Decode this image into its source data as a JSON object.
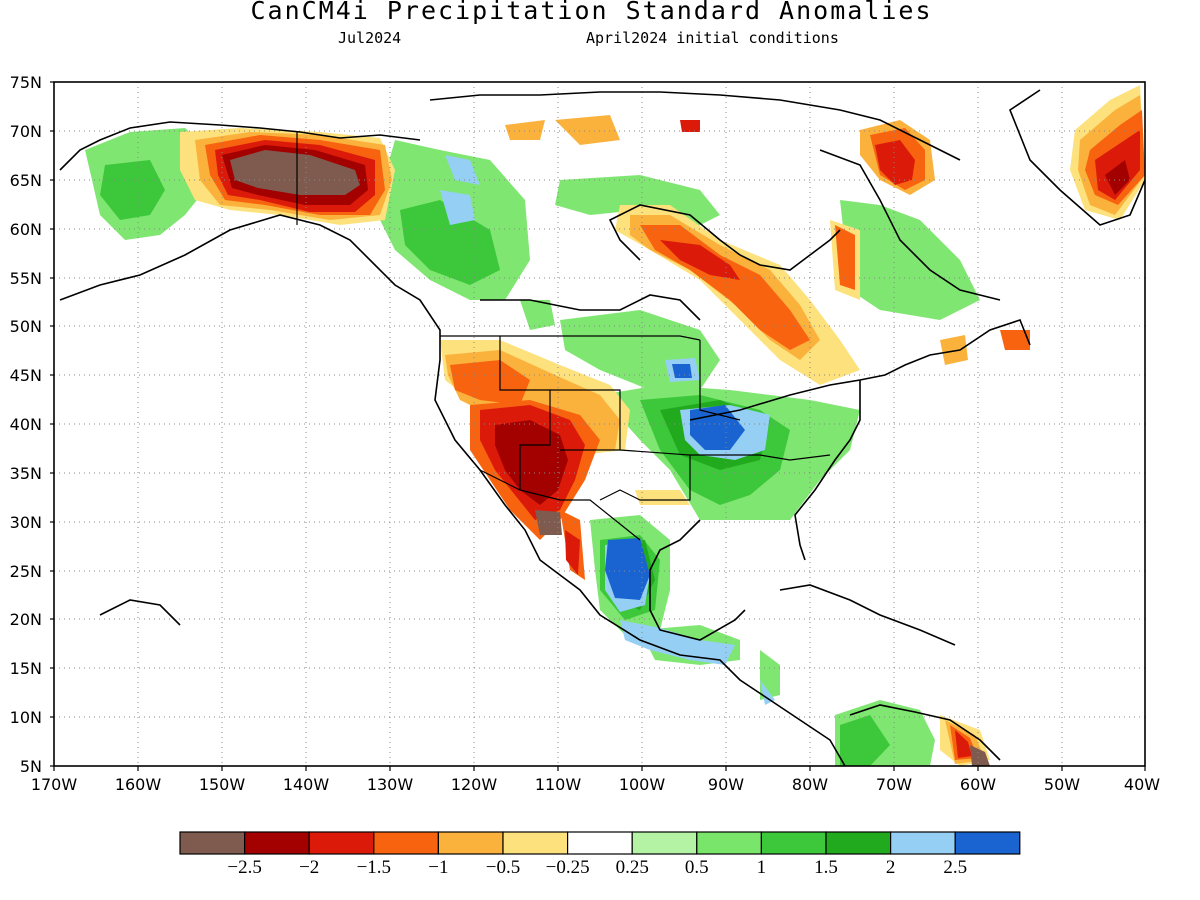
{
  "header": {
    "title": "CanCM4i Precipitation Standard Anomalies",
    "left_subtitle": "Jul2024",
    "right_subtitle": "April2024 initial conditions"
  },
  "map": {
    "lat_labels": [
      "75N",
      "70N",
      "65N",
      "60N",
      "55N",
      "50N",
      "45N",
      "40N",
      "35N",
      "30N",
      "25N",
      "20N",
      "15N",
      "10N",
      "5N"
    ],
    "lon_labels": [
      "170W",
      "160W",
      "150W",
      "140W",
      "130W",
      "120W",
      "110W",
      "100W",
      "90W",
      "80W",
      "70W",
      "60W",
      "50W",
      "40W"
    ],
    "lon_range": [
      -170,
      -40
    ],
    "lat_range": [
      5,
      75
    ],
    "grid": "dotted"
  },
  "colorbar": {
    "colors": [
      "#7f5a4e",
      "#a30000",
      "#db1a0a",
      "#f8630f",
      "#fbb23d",
      "#fde17c",
      "#ffffff",
      "#b4f3a4",
      "#79e56a",
      "#3cc83a",
      "#22aa1f",
      "#95cff4",
      "#1a64d2"
    ],
    "labels": [
      "-2.5",
      "-2",
      "-1.5",
      "-1",
      "-0.5",
      "-0.25",
      "0.25",
      "0.5",
      "1",
      "1.5",
      "2",
      "2.5"
    ]
  },
  "anomaly_regions": [
    {
      "region": "Yukon / eastern Alaska",
      "category": "< -2.5",
      "color": "#7f5a4e"
    },
    {
      "region": "US Southwest / Arizona",
      "category": "-2 to -2.5",
      "color": "#a30000"
    },
    {
      "region": "Central US / Mississippi valley",
      "category": "> 2.5",
      "color": "#1a64d2"
    },
    {
      "region": "Eastern Mexico",
      "category": "> 2.5",
      "color": "#1a64d2"
    },
    {
      "region": "Western Alaska",
      "category": "1 to 1.5",
      "color": "#3cc83a"
    },
    {
      "region": "Quebec / Hudson Bay south",
      "category": "-1 to -1.5",
      "color": "#f8630f"
    },
    {
      "region": "Southern Greenland",
      "category": "-1.5 to -2",
      "color": "#db1a0a"
    }
  ]
}
